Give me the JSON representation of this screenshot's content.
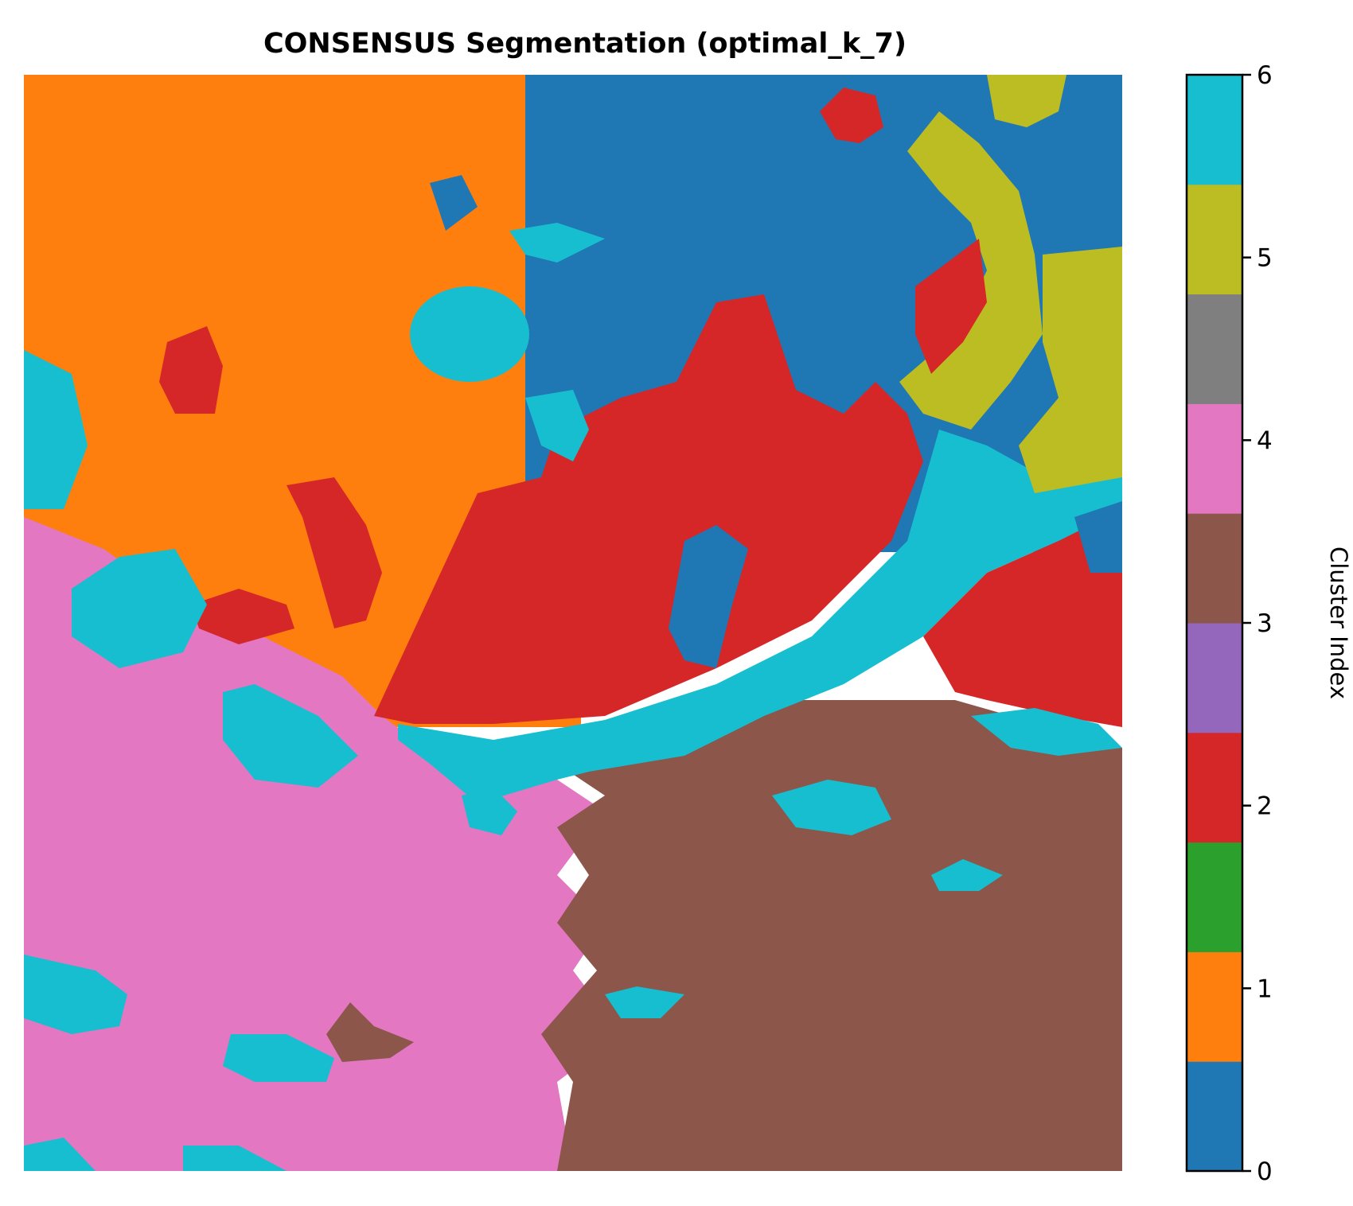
{
  "chart_data": {
    "type": "heatmap",
    "title": "CONSENSUS Segmentation (optimal_k_7)",
    "colorbar": {
      "label": "Cluster Index",
      "range": [
        0,
        6
      ],
      "ticks": [
        "0",
        "1",
        "2",
        "3",
        "4",
        "5",
        "6"
      ],
      "colors": [
        "#1f77b4",
        "#ff7f0e",
        "#2ca02c",
        "#d62728",
        "#9467bd",
        "#8c564b",
        "#e377c2",
        "#7f7f7f",
        "#bcbd22",
        "#17becf"
      ]
    },
    "clusters": [
      {
        "index": 0,
        "color": "#1f77b4"
      },
      {
        "index": 1,
        "color": "#ff7f0e"
      },
      {
        "index": 2,
        "color": "#d62728"
      },
      {
        "index": 3,
        "color": "#8c564b"
      },
      {
        "index": 4,
        "color": "#e377c2"
      },
      {
        "index": 5,
        "color": "#bcbd22"
      },
      {
        "index": 6,
        "color": "#17becf"
      }
    ],
    "axes_visible": false
  }
}
